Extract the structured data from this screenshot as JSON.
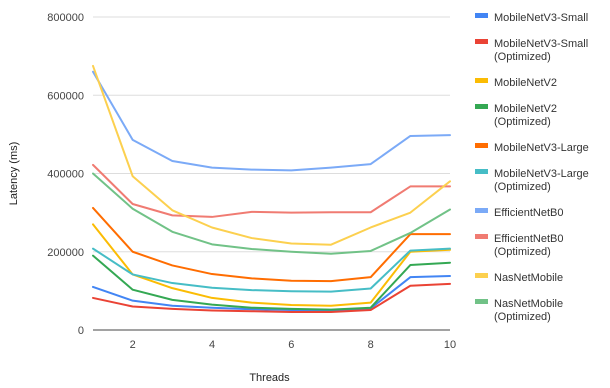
{
  "chart_data": {
    "type": "line",
    "title": "",
    "xlabel": "Threads",
    "ylabel": "Latency (ms)",
    "xlim": [
      1,
      10
    ],
    "ylim": [
      0,
      800000
    ],
    "x": [
      1,
      2,
      3,
      4,
      5,
      6,
      7,
      8,
      9,
      10
    ],
    "x_ticks": [
      "2",
      "4",
      "6",
      "8",
      "10"
    ],
    "y_ticks": [
      "0",
      "200000",
      "400000",
      "600000",
      "800000"
    ],
    "grid": "horizontal",
    "legend_position": "right",
    "series": [
      {
        "name": "MobileNetV3-Small",
        "color": "#4285f4",
        "values": [
          110000,
          75000,
          62000,
          57000,
          53000,
          51000,
          50000,
          55000,
          135000,
          138000
        ]
      },
      {
        "name": "MobileNetV3-Small (Optimized)",
        "color": "#ea4335",
        "values": [
          82000,
          60000,
          54000,
          50000,
          48000,
          46000,
          46000,
          51000,
          113000,
          118000
        ]
      },
      {
        "name": "MobileNetV2",
        "color": "#fbbc04",
        "values": [
          270000,
          142000,
          107000,
          82000,
          70000,
          64000,
          62000,
          70000,
          200000,
          205000
        ]
      },
      {
        "name": "MobileNetV2 (Optimized)",
        "color": "#34a853",
        "values": [
          190000,
          103000,
          77000,
          65000,
          57000,
          54000,
          52000,
          57000,
          166000,
          172000
        ]
      },
      {
        "name": "MobileNetV3-Large",
        "color": "#ff6d01",
        "values": [
          312000,
          200000,
          165000,
          143000,
          132000,
          126000,
          125000,
          135000,
          245000,
          245000
        ]
      },
      {
        "name": "MobileNetV3-Large (Optimized)",
        "color": "#46bdc6",
        "values": [
          208000,
          142000,
          120000,
          108000,
          102000,
          99000,
          98000,
          106000,
          203000,
          208000
        ]
      },
      {
        "name": "EfficientNetB0",
        "color": "#7baaf7",
        "values": [
          660000,
          486000,
          432000,
          415000,
          410000,
          408000,
          415000,
          424000,
          496000,
          498000
        ]
      },
      {
        "name": "EfficientNetB0 (Optimized)",
        "color": "#f07b72",
        "values": [
          422000,
          322000,
          293000,
          289000,
          302000,
          300000,
          301000,
          301000,
          367000,
          367000
        ]
      },
      {
        "name": "NasNetMobile",
        "color": "#fcd04f",
        "values": [
          675000,
          393000,
          306000,
          262000,
          235000,
          221000,
          218000,
          262000,
          300000,
          380000
        ]
      },
      {
        "name": "NasNetMobile (Optimized)",
        "color": "#71c287",
        "values": [
          400000,
          310000,
          251000,
          219000,
          207000,
          200000,
          195000,
          202000,
          248000,
          308000
        ]
      }
    ]
  }
}
